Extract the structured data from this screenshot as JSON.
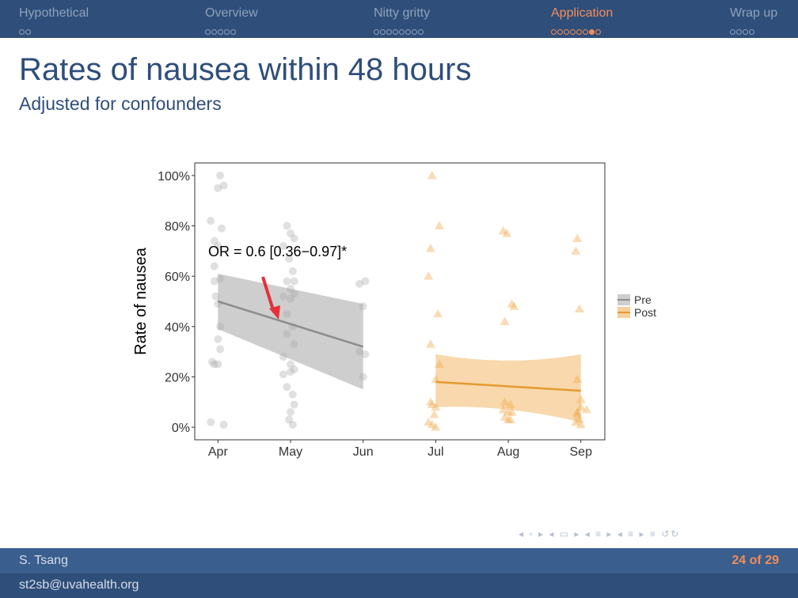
{
  "nav": {
    "sections": [
      {
        "label": "Hypothetical",
        "dots": 2,
        "filled": -1,
        "active": false
      },
      {
        "label": "Overview",
        "dots": 5,
        "filled": -1,
        "active": false
      },
      {
        "label": "Nitty gritty",
        "dots": 8,
        "filled": -1,
        "active": false
      },
      {
        "label": "Application",
        "dots": 8,
        "filled": 6,
        "active": true
      },
      {
        "label": "Wrap up",
        "dots": 4,
        "filled": -1,
        "active": false
      }
    ]
  },
  "slide": {
    "title": "Rates of nausea within 48 hours",
    "subtitle": "Adjusted for confounders"
  },
  "footer": {
    "author": "S. Tsang",
    "email": "st2sb@uvahealth.org",
    "page": "24 of 29"
  },
  "colors": {
    "pre": "#a6a6a6",
    "post": "#f0a848",
    "arrow": "#e5303a",
    "header": "#2f4e7a",
    "accent": "#f28d5a"
  },
  "chart_data": {
    "type": "scatter",
    "ylabel": "Rate of nausea",
    "xlabel": "",
    "x_ticks": [
      "Apr",
      "May",
      "Jun",
      "Jul",
      "Aug",
      "Sep"
    ],
    "x_tick_values": [
      0,
      1,
      2,
      3,
      4,
      5
    ],
    "xlim": [
      -0.32,
      5.33
    ],
    "y_ticks": [
      "0%",
      "20%",
      "40%",
      "60%",
      "80%",
      "100%"
    ],
    "y_tick_values": [
      0,
      20,
      40,
      60,
      80,
      100
    ],
    "ylim": [
      -5,
      105
    ],
    "annotation": "OR = 0.6 [0.36−0.97]*",
    "legend": [
      "Pre",
      "Post"
    ],
    "legend_position": "right",
    "grid": false,
    "series": [
      {
        "name": "Pre",
        "marker": "circle",
        "points": [
          [
            0.03,
            100
          ],
          [
            0.08,
            96
          ],
          [
            0.0,
            95
          ],
          [
            -0.1,
            82
          ],
          [
            0.05,
            79
          ],
          [
            -0.05,
            74
          ],
          [
            0.0,
            72
          ],
          [
            -0.05,
            64
          ],
          [
            -0.05,
            58
          ],
          [
            0.03,
            59
          ],
          [
            -0.03,
            52
          ],
          [
            0.0,
            49
          ],
          [
            0.03,
            40
          ],
          [
            0.0,
            35
          ],
          [
            0.03,
            31
          ],
          [
            -0.08,
            26
          ],
          [
            -0.05,
            25
          ],
          [
            0.0,
            25
          ],
          [
            -0.1,
            2
          ],
          [
            0.08,
            1
          ],
          [
            0.95,
            80
          ],
          [
            1.0,
            77
          ],
          [
            1.05,
            75
          ],
          [
            0.9,
            72
          ],
          [
            0.98,
            67
          ],
          [
            1.03,
            62
          ],
          [
            0.95,
            58
          ],
          [
            1.05,
            58
          ],
          [
            1.0,
            55
          ],
          [
            1.05,
            53
          ],
          [
            0.9,
            52
          ],
          [
            1.0,
            51
          ],
          [
            0.95,
            45
          ],
          [
            1.03,
            40
          ],
          [
            0.95,
            37
          ],
          [
            1.05,
            33
          ],
          [
            0.9,
            28
          ],
          [
            1.0,
            25
          ],
          [
            1.05,
            23
          ],
          [
            1.0,
            22
          ],
          [
            0.9,
            21
          ],
          [
            0.95,
            16
          ],
          [
            1.03,
            13
          ],
          [
            1.05,
            9
          ],
          [
            1.0,
            6
          ],
          [
            0.98,
            3
          ],
          [
            1.03,
            1
          ],
          [
            1.95,
            57
          ],
          [
            2.03,
            58
          ],
          [
            2.0,
            48
          ],
          [
            1.95,
            30
          ],
          [
            2.03,
            29
          ],
          [
            2.0,
            20
          ]
        ],
        "fit_x": [
          0,
          2
        ],
        "fit_y": [
          50,
          32
        ],
        "ci_lower": [
          39,
          15
        ],
        "ci_upper": [
          61,
          49
        ]
      },
      {
        "name": "Post",
        "marker": "triangle",
        "points": [
          [
            2.95,
            100
          ],
          [
            3.05,
            80
          ],
          [
            2.93,
            71
          ],
          [
            2.9,
            60
          ],
          [
            3.03,
            45
          ],
          [
            2.93,
            33
          ],
          [
            3.05,
            25
          ],
          [
            3.0,
            19
          ],
          [
            2.93,
            10
          ],
          [
            2.95,
            9
          ],
          [
            3.0,
            8
          ],
          [
            2.98,
            5
          ],
          [
            2.9,
            2
          ],
          [
            2.95,
            1
          ],
          [
            3.0,
            0
          ],
          [
            3.93,
            78
          ],
          [
            3.98,
            77
          ],
          [
            4.05,
            49
          ],
          [
            4.08,
            48
          ],
          [
            3.95,
            42
          ],
          [
            3.95,
            10
          ],
          [
            4.03,
            9
          ],
          [
            3.93,
            7
          ],
          [
            4.0,
            6
          ],
          [
            4.05,
            6
          ],
          [
            3.95,
            4
          ],
          [
            4.0,
            3
          ],
          [
            4.03,
            3
          ],
          [
            4.95,
            75
          ],
          [
            4.93,
            70
          ],
          [
            4.98,
            47
          ],
          [
            4.95,
            19
          ],
          [
            5.0,
            11
          ],
          [
            5.0,
            8
          ],
          [
            5.08,
            7
          ],
          [
            4.95,
            6
          ],
          [
            4.95,
            5
          ],
          [
            4.98,
            3
          ],
          [
            4.93,
            2
          ],
          [
            5.0,
            1
          ]
        ],
        "fit_x": [
          3,
          5
        ],
        "fit_y": [
          18,
          14.5
        ],
        "ci_lower": [
          8,
          2
        ],
        "ci_upper": [
          29,
          29
        ]
      }
    ]
  }
}
